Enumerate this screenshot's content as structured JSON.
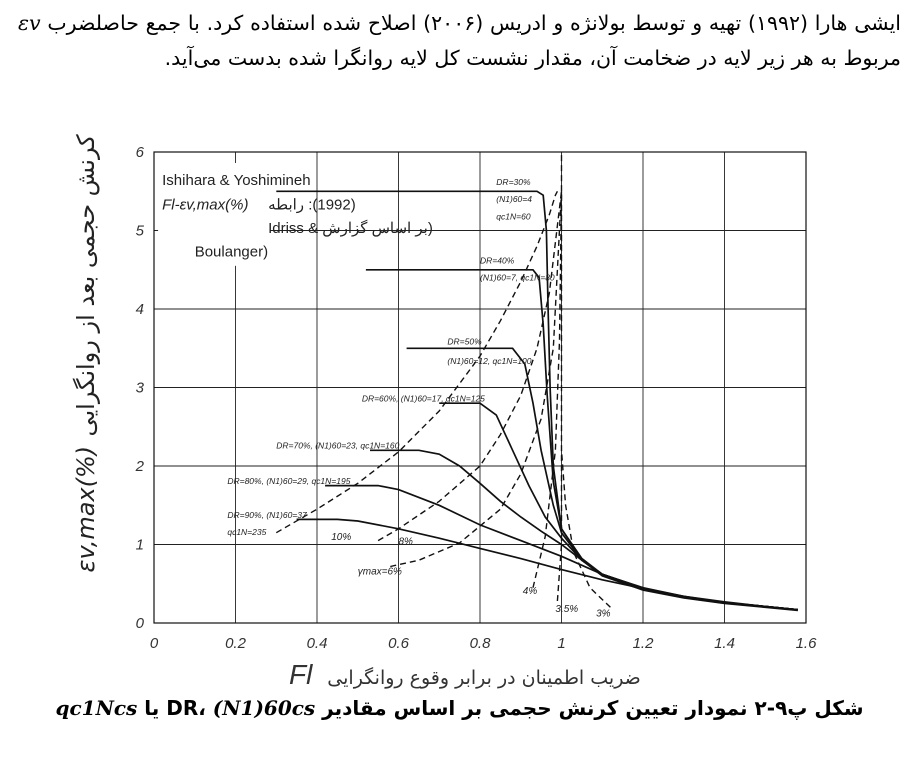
{
  "paragraph": {
    "line1": "ایشی هارا (۱۹۹۲) تهیه و توسط بولانژه و ادریس (۲۰۰۶) اصلاح شده استفاده کرد. با",
    "line2_part1": "جمع حاصلضرب ",
    "line2_symbol": "εv",
    "line2_part2": " مربوط به هر زیر لایه در ضخامت آن، مقدار نشست کل لایه روانگرا",
    "line3": "شده بدست می‌آید."
  },
  "chart_data": {
    "type": "line",
    "xlim": [
      0,
      1.6
    ],
    "ylim": [
      0,
      6
    ],
    "x_ticks": [
      "0",
      "0.2",
      "0.4",
      "0.6",
      "0.8",
      "1",
      "1.2",
      "1.4",
      "1.6"
    ],
    "y_ticks": [
      "0",
      "1",
      "2",
      "3",
      "4",
      "5",
      "6"
    ],
    "grid": true,
    "ylabel_fa": "کرنش حجمی بعد از روانگرایی",
    "ylabel_symbol": "εv,max(%)",
    "xlabel_fa": "ضریب اطمینان در برابر وقوع روانگرایی",
    "xlabel_symbol": "Fl",
    "legend": {
      "line1": "Ishihara & Yoshimineh",
      "line2a": "Fl-εv,max(%)",
      "line2b": "(1992): رابطه",
      "line3": "(بر اساس گزارش & Idriss",
      "line4": "Boulanger)"
    },
    "series": [
      {
        "style": "solid",
        "labels": [
          "DR=30%",
          "(N1)60=4",
          "qc1N=60"
        ],
        "x": [
          0.3,
          0.94,
          0.955,
          0.963,
          0.967,
          0.972,
          0.98,
          1.0,
          1.05,
          1.1,
          1.2,
          1.3,
          1.4,
          1.5,
          1.58
        ],
        "y": [
          5.5,
          5.5,
          5.45,
          5.0,
          4.0,
          3.0,
          2.0,
          1.2,
          0.8,
          0.6,
          0.42,
          0.32,
          0.25,
          0.2,
          0.16
        ]
      },
      {
        "style": "solid",
        "labels": [
          "DR=40%",
          "(N1)60=7, qc1N=80"
        ],
        "x": [
          0.52,
          0.93,
          0.945,
          0.955,
          0.965,
          0.98,
          1.0,
          1.05,
          1.1,
          1.2,
          1.3,
          1.4,
          1.5,
          1.58
        ],
        "y": [
          4.5,
          4.5,
          4.4,
          3.8,
          2.9,
          1.8,
          1.2,
          0.82,
          0.62,
          0.44,
          0.33,
          0.26,
          0.21,
          0.17
        ]
      },
      {
        "style": "solid",
        "labels": [
          "DR=50%",
          "(N1)60=12, qc1N=100"
        ],
        "x": [
          0.62,
          0.88,
          0.91,
          0.93,
          0.95,
          0.98,
          1.0,
          1.05,
          1.1,
          1.2,
          1.3,
          1.4,
          1.5,
          1.58
        ],
        "y": [
          3.5,
          3.5,
          3.3,
          2.8,
          2.2,
          1.5,
          1.15,
          0.8,
          0.62,
          0.44,
          0.33,
          0.26,
          0.21,
          0.17
        ]
      },
      {
        "style": "solid",
        "labels": [
          "DR=60%, (N1)60=17, qc1N=125"
        ],
        "x": [
          0.7,
          0.8,
          0.84,
          0.88,
          0.92,
          0.96,
          1.0,
          1.05,
          1.1,
          1.2,
          1.3,
          1.4,
          1.5,
          1.58
        ],
        "y": [
          2.8,
          2.8,
          2.65,
          2.2,
          1.75,
          1.35,
          1.08,
          0.8,
          0.62,
          0.44,
          0.33,
          0.26,
          0.21,
          0.17
        ]
      },
      {
        "style": "solid",
        "labels": [
          "DR=70%, (N1)60=23, qc1N=160"
        ],
        "x": [
          0.53,
          0.65,
          0.7,
          0.75,
          0.8,
          0.85,
          0.9,
          0.95,
          1.0,
          1.05,
          1.1,
          1.2,
          1.3,
          1.4,
          1.5,
          1.58
        ],
        "y": [
          2.2,
          2.2,
          2.15,
          2.0,
          1.78,
          1.55,
          1.35,
          1.17,
          1.0,
          0.8,
          0.62,
          0.44,
          0.33,
          0.26,
          0.21,
          0.17
        ]
      },
      {
        "style": "solid",
        "labels": [
          "DR=80%, (N1)60=29, qc1N=195"
        ],
        "x": [
          0.42,
          0.55,
          0.6,
          0.7,
          0.8,
          0.9,
          1.0,
          1.1,
          1.2,
          1.3,
          1.4,
          1.5,
          1.58
        ],
        "y": [
          1.75,
          1.75,
          1.7,
          1.5,
          1.25,
          1.05,
          0.85,
          0.62,
          0.45,
          0.34,
          0.26,
          0.21,
          0.17
        ]
      },
      {
        "style": "solid",
        "labels": [
          "DR=90%, (N1)60=37",
          "qc1N=235"
        ],
        "x": [
          0.35,
          0.45,
          0.5,
          0.6,
          0.7,
          0.8,
          0.9,
          1.0,
          1.1,
          1.2,
          1.3,
          1.4,
          1.5,
          1.58
        ],
        "y": [
          1.32,
          1.32,
          1.3,
          1.2,
          1.08,
          0.95,
          0.82,
          0.68,
          0.55,
          0.44,
          0.34,
          0.27,
          0.21,
          0.17
        ]
      },
      {
        "style": "dashed",
        "labels": [
          "10%"
        ],
        "x": [
          0.3,
          0.4,
          0.5,
          0.6,
          0.7,
          0.8,
          0.85,
          0.9,
          0.94,
          0.97,
          0.985,
          0.99
        ],
        "y": [
          1.15,
          1.45,
          1.78,
          2.18,
          2.7,
          3.4,
          3.85,
          4.35,
          4.8,
          5.2,
          5.45,
          5.5
        ]
      },
      {
        "style": "dashed",
        "labels": [
          "8%"
        ],
        "x": [
          0.55,
          0.6,
          0.7,
          0.8,
          0.85,
          0.9,
          0.94,
          0.97,
          1.0
        ],
        "y": [
          1.05,
          1.2,
          1.55,
          2.0,
          2.4,
          2.9,
          3.5,
          4.2,
          5.5
        ]
      },
      {
        "style": "dashed",
        "labels": [
          "γmax=6%"
        ],
        "x": [
          0.58,
          0.65,
          0.75,
          0.85,
          0.9,
          0.95,
          0.98,
          1.0
        ],
        "y": [
          0.72,
          0.8,
          1.02,
          1.45,
          1.9,
          2.6,
          3.5,
          5.5
        ]
      },
      {
        "style": "dashed",
        "labels": [
          "4%"
        ],
        "x": [
          0.93,
          0.96,
          0.985,
          0.995,
          1.0
        ],
        "y": [
          0.45,
          1.1,
          2.2,
          3.6,
          5.5
        ]
      },
      {
        "style": "dashed",
        "labels": [
          "3.5%"
        ],
        "x": [
          0.99,
          1.0,
          1.0,
          1.0
        ],
        "y": [
          0.28,
          1.0,
          3.0,
          6.0
        ]
      },
      {
        "style": "dashed",
        "labels": [
          "3%"
        ],
        "x": [
          1.12,
          1.07,
          1.03,
          1.01,
          1.0
        ],
        "y": [
          0.2,
          0.45,
          0.9,
          1.5,
          2.2
        ]
      }
    ]
  },
  "caption": {
    "text_fa": "شکل پ۹-۲ نمودار تعیین کرنش حجمی بر اساس مقادیر DR، ",
    "symbol1": "(N1)60cs",
    "mid": " یا ",
    "symbol2": "qc1Ncs"
  }
}
